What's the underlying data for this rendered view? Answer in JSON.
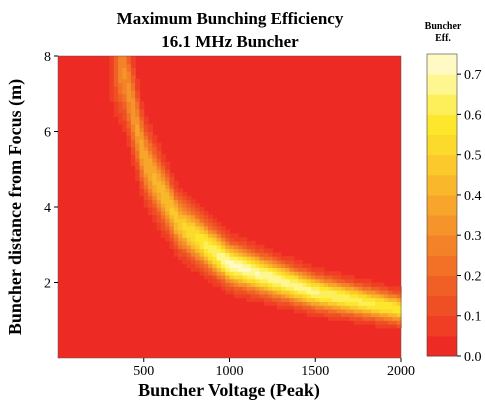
{
  "chart_data": {
    "type": "heatmap",
    "title": "Maximum Bunching Efficiency",
    "subtitle": "16.1  MHz Buncher",
    "xlabel": "Buncher Voltage (Peak)",
    "ylabel": "Buncher distance from Focus (m)",
    "xlim": [
      0,
      2000
    ],
    "ylim": [
      0,
      8
    ],
    "x_ticks": [
      "500",
      "1000",
      "1500",
      "2000"
    ],
    "x_tick_values": [
      500,
      1000,
      1500,
      2000
    ],
    "y_ticks": [
      "2",
      "4",
      "6",
      "8"
    ],
    "y_tick_values": [
      2,
      4,
      6,
      8
    ],
    "colorbar": {
      "title_line1": "Buncher",
      "title_line2": "Eff.",
      "range": [
        0,
        0.75
      ],
      "tick_labels": [
        "0.0",
        "0.1",
        "0.2",
        "0.3",
        "0.4",
        "0.5",
        "0.6",
        "0.7"
      ],
      "tick_values": [
        0,
        0.1,
        0.2,
        0.3,
        0.4,
        0.5,
        0.6,
        0.7
      ],
      "levels": [
        0,
        0.05,
        0.1,
        0.15,
        0.2,
        0.25,
        0.3,
        0.35,
        0.4,
        0.45,
        0.5,
        0.55,
        0.6,
        0.65,
        0.7,
        0.75
      ],
      "colors": [
        "#ee2a24",
        "#ef3e24",
        "#ef4f25",
        "#f06026",
        "#f27127",
        "#f38228",
        "#f5942a",
        "#f7a62b",
        "#f9b82b",
        "#fbc92b",
        "#fcda2c",
        "#fde72d",
        "#fdef5a",
        "#fef68f",
        "#fffac4"
      ]
    },
    "ridge": {
      "description_points": [
        {
          "x": 380,
          "y": 7.7
        },
        {
          "x": 500,
          "y": 5.3
        },
        {
          "x": 700,
          "y": 3.6
        },
        {
          "x": 1000,
          "y": 2.5
        },
        {
          "x": 1500,
          "y": 1.75
        },
        {
          "x": 2000,
          "y": 1.3
        }
      ],
      "peak_efficiency": [
        {
          "x": 380,
          "value": 0.3
        },
        {
          "x": 500,
          "value": 0.38
        },
        {
          "x": 700,
          "value": 0.48
        },
        {
          "x": 1000,
          "value": 0.72
        },
        {
          "x": 1500,
          "value": 0.66
        },
        {
          "x": 2000,
          "value": 0.58
        }
      ]
    },
    "grid": false,
    "legend": "colorbar-right"
  }
}
